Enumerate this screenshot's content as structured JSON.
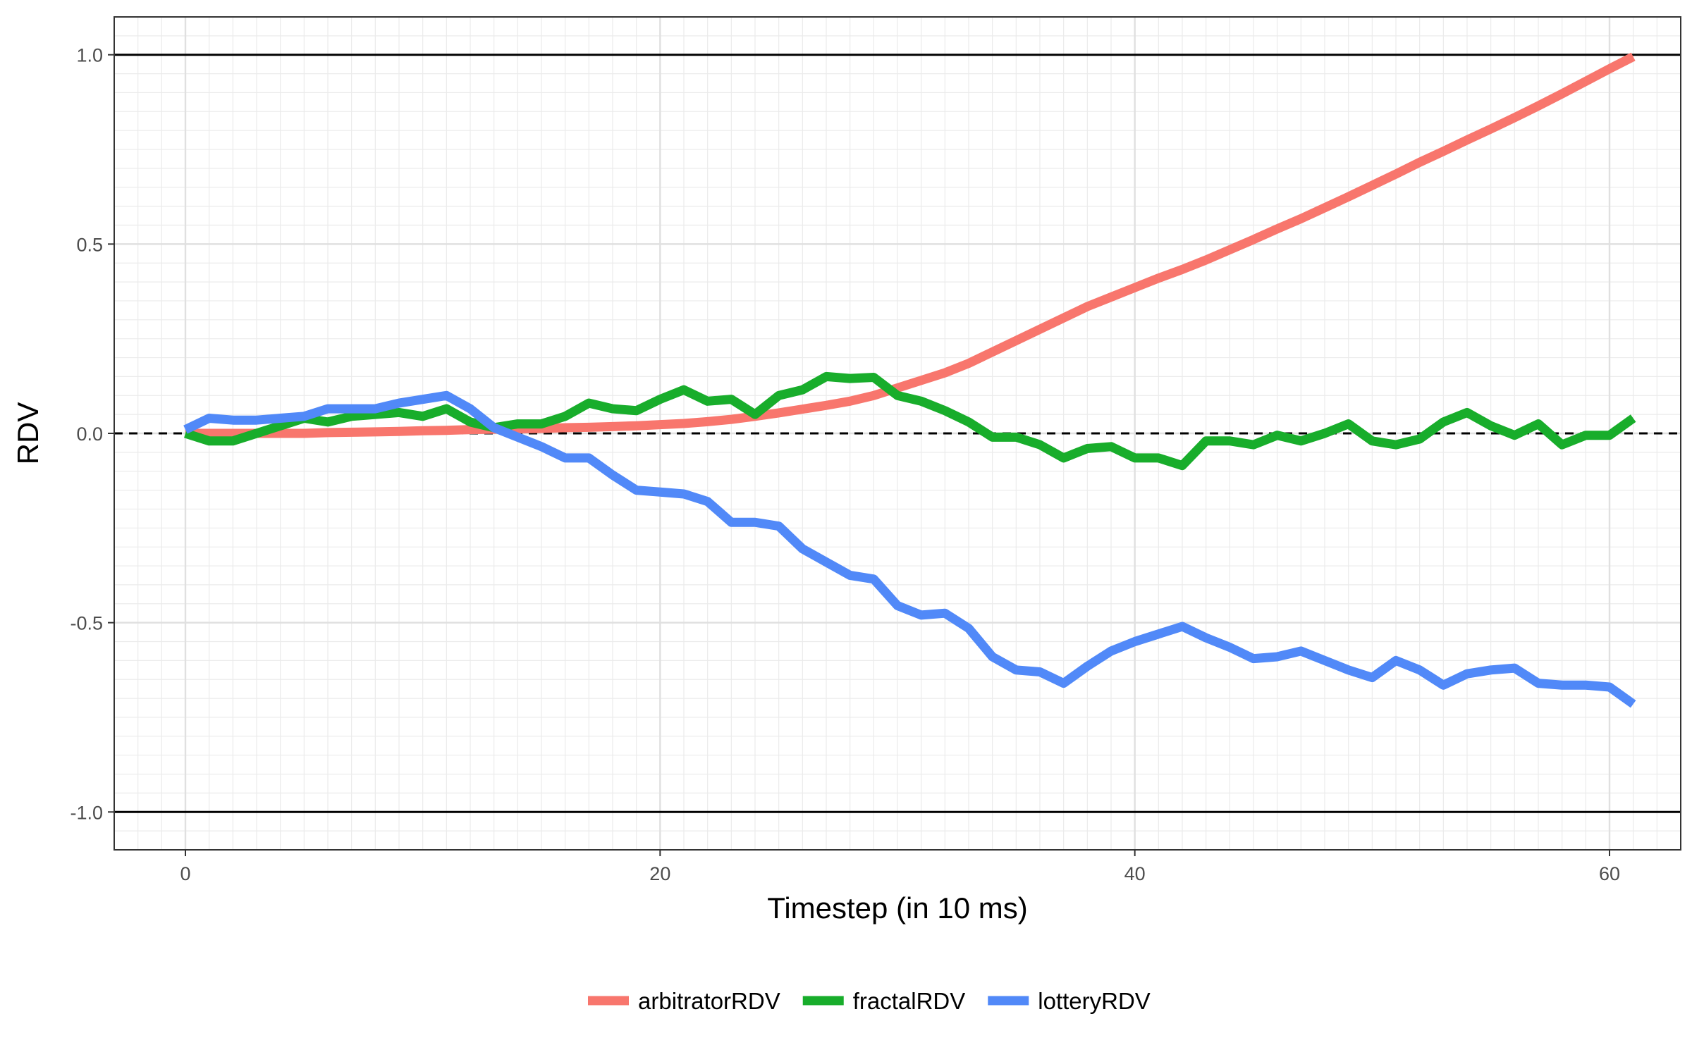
{
  "chart_data": {
    "type": "line",
    "title": "",
    "xlabel": "Timestep (in 10 ms)",
    "ylabel": "RDV",
    "xlim": [
      -3,
      63
    ],
    "ylim": [
      -1.1,
      1.1
    ],
    "x_ticks": [
      0,
      20,
      40,
      60
    ],
    "x_tick_labels": [
      "0",
      "20",
      "40",
      "60"
    ],
    "y_ticks": [
      -1.0,
      -0.5,
      0.0,
      0.5,
      1.0
    ],
    "y_tick_labels": [
      "-1.0",
      "-0.5",
      "0.0",
      "0.5",
      "1.0"
    ],
    "grid": true,
    "reference_lines": [
      {
        "y": 1.0,
        "style": "solid",
        "color": "#000000"
      },
      {
        "y": -1.0,
        "style": "solid",
        "color": "#000000"
      },
      {
        "y": 0.0,
        "style": "dashed",
        "color": "#000000"
      }
    ],
    "legend_position": "bottom",
    "x": [
      0,
      1,
      2,
      3,
      4,
      5,
      6,
      7,
      8,
      9,
      10,
      11,
      12,
      13,
      14,
      15,
      16,
      17,
      18,
      19,
      20,
      21,
      22,
      23,
      24,
      25,
      26,
      27,
      28,
      29,
      30,
      31,
      32,
      33,
      34,
      35,
      36,
      37,
      38,
      39,
      40,
      41,
      42,
      43,
      44,
      45,
      46,
      47,
      48,
      49,
      50,
      51,
      52,
      53,
      54,
      55,
      56,
      57,
      58,
      59,
      60,
      61
    ],
    "series": [
      {
        "name": "arbitratorRDV",
        "color": "#F8766D",
        "values": [
          0.0,
          0.0,
          0.0,
          0.0,
          0.0,
          0.0,
          0.002,
          0.003,
          0.004,
          0.005,
          0.007,
          0.008,
          0.01,
          0.011,
          0.012,
          0.013,
          0.015,
          0.016,
          0.018,
          0.02,
          0.023,
          0.026,
          0.031,
          0.037,
          0.045,
          0.054,
          0.064,
          0.074,
          0.085,
          0.1,
          0.12,
          0.14,
          0.16,
          0.185,
          0.215,
          0.245,
          0.275,
          0.305,
          0.335,
          0.36,
          0.385,
          0.41,
          0.433,
          0.458,
          0.485,
          0.512,
          0.54,
          0.567,
          0.596,
          0.625,
          0.655,
          0.685,
          0.716,
          0.745,
          0.775,
          0.804,
          0.834,
          0.865,
          0.897,
          0.93,
          0.963,
          0.995
        ]
      },
      {
        "name": "fractalRDV",
        "color": "#18AD2B",
        "values": [
          0.0,
          -0.02,
          -0.02,
          0.0,
          0.02,
          0.04,
          0.03,
          0.045,
          0.05,
          0.055,
          0.045,
          0.065,
          0.03,
          0.015,
          0.025,
          0.025,
          0.045,
          0.08,
          0.065,
          0.06,
          0.09,
          0.115,
          0.085,
          0.09,
          0.05,
          0.1,
          0.115,
          0.15,
          0.145,
          0.148,
          0.1,
          0.085,
          0.06,
          0.03,
          -0.01,
          -0.01,
          -0.03,
          -0.065,
          -0.04,
          -0.035,
          -0.065,
          -0.065,
          -0.085,
          -0.02,
          -0.02,
          -0.03,
          -0.005,
          -0.02,
          0.0,
          0.025,
          -0.02,
          -0.03,
          -0.015,
          0.03,
          0.055,
          0.02,
          -0.005,
          0.025,
          -0.03,
          -0.005,
          -0.005,
          0.04
        ]
      },
      {
        "name": "lotteryRDV",
        "color": "#5189F8",
        "values": [
          0.01,
          0.04,
          0.035,
          0.035,
          0.04,
          0.045,
          0.065,
          0.065,
          0.065,
          0.08,
          0.09,
          0.1,
          0.065,
          0.015,
          -0.01,
          -0.035,
          -0.065,
          -0.065,
          -0.11,
          -0.15,
          -0.155,
          -0.16,
          -0.18,
          -0.235,
          -0.235,
          -0.245,
          -0.305,
          -0.34,
          -0.375,
          -0.385,
          -0.455,
          -0.48,
          -0.475,
          -0.515,
          -0.59,
          -0.625,
          -0.63,
          -0.66,
          -0.615,
          -0.575,
          -0.55,
          -0.53,
          -0.51,
          -0.54,
          -0.565,
          -0.595,
          -0.59,
          -0.575,
          -0.6,
          -0.625,
          -0.645,
          -0.6,
          -0.625,
          -0.665,
          -0.635,
          -0.625,
          -0.62,
          -0.66,
          -0.665,
          -0.665,
          -0.67,
          -0.715
        ]
      }
    ]
  }
}
